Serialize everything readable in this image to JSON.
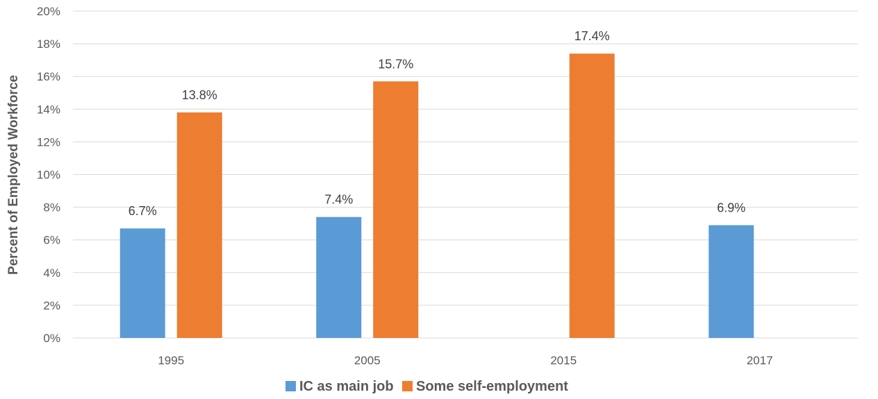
{
  "chart_data": {
    "type": "bar",
    "categories": [
      "1995",
      "2005",
      "2015",
      "2017"
    ],
    "series": [
      {
        "name": "IC as main job",
        "values": [
          6.7,
          7.4,
          null,
          6.9
        ],
        "color": "#5B9BD5"
      },
      {
        "name": "Some self-employment",
        "values": [
          13.8,
          15.7,
          17.4,
          null
        ],
        "color": "#ED7D31"
      }
    ],
    "data_labels": {
      "IC as main job": [
        "6.7%",
        "7.4%",
        "",
        "6.9%"
      ],
      "Some self-employment": [
        "13.8%",
        "15.7%",
        "17.4%",
        ""
      ]
    },
    "title": "",
    "xlabel": "",
    "ylabel": "Percent of Employed Workforce",
    "ylim": [
      0,
      20
    ],
    "yticks": [
      0,
      2,
      4,
      6,
      8,
      10,
      12,
      14,
      16,
      18,
      20
    ],
    "ytick_labels": [
      "0%",
      "2%",
      "4%",
      "6%",
      "8%",
      "10%",
      "12%",
      "14%",
      "16%",
      "18%",
      "20%"
    ],
    "grid": true,
    "legend_position": "bottom",
    "gridline_color": "#D9D9D9"
  }
}
